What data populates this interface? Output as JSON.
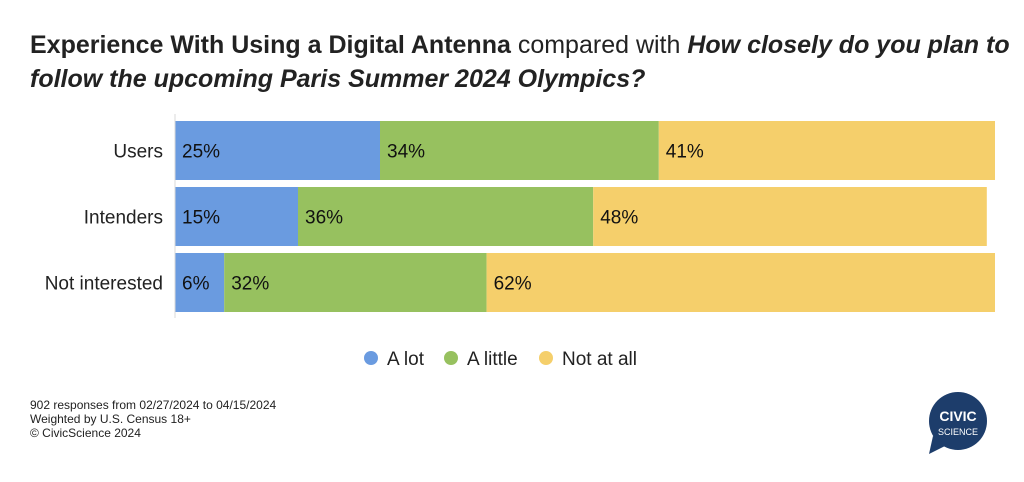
{
  "title": {
    "part1": "Experience With Using a Digital Antenna",
    "part2": "compared with",
    "part3": "How closely do you plan to follow the upcoming Paris Summer 2024 Olympics?"
  },
  "chart_data": {
    "type": "bar",
    "orientation": "horizontal",
    "stacked": true,
    "categories": [
      "Users",
      "Intenders",
      "Not interested"
    ],
    "series": [
      {
        "name": "A lot",
        "color": "#6a9be0",
        "values": [
          25,
          15,
          6
        ]
      },
      {
        "name": "A little",
        "color": "#97c15f",
        "values": [
          34,
          36,
          32
        ]
      },
      {
        "name": "Not at all",
        "color": "#f5cf6b",
        "values": [
          41,
          48,
          62
        ]
      }
    ],
    "value_suffix": "%",
    "xlim": [
      0,
      100
    ],
    "grid": false,
    "legend": "bottom"
  },
  "footer": {
    "line1": "902 responses from 02/27/2024 to 04/15/2024",
    "line2": "Weighted by U.S. Census 18+",
    "line3": "© CivicScience 2024"
  },
  "logo": {
    "line1": "CIVIC",
    "line2": "SCIENCE",
    "color": "#1d3d6b"
  }
}
